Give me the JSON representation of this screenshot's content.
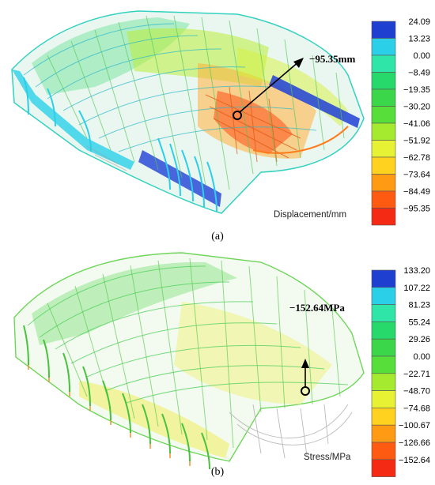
{
  "panel_a": {
    "caption": "(a)",
    "annotation": "−95.35mm",
    "legend_title": "Displacement/mm",
    "legend_values": [
      "24.09",
      "13.23",
      "0.00",
      "−8.49",
      "−19.35",
      "−30.20",
      "−41.06",
      "−51.92",
      "−62.78",
      "−73.64",
      "−84.49",
      "−95.35"
    ],
    "legend_colors": [
      "#1f3fd1",
      "#2bd0e8",
      "#2fe6a8",
      "#27d96a",
      "#3bd64a",
      "#57de3b",
      "#a6ea2f",
      "#e6f233",
      "#ffd21f",
      "#ff9a14",
      "#ff5a12",
      "#f52a14"
    ]
  },
  "panel_b": {
    "caption": "(b)",
    "annotation": "−152.64MPa",
    "legend_title": "Stress/MPa",
    "legend_values": [
      "133.20",
      "107.22",
      "81.23",
      "55.24",
      "29.26",
      "0.00",
      "−22.71",
      "−48.70",
      "−74.68",
      "−100.67",
      "−126.66",
      "−152.64"
    ],
    "legend_colors": [
      "#1f3fd1",
      "#2bd0e8",
      "#2fe6a8",
      "#27d96a",
      "#3bd64a",
      "#57de3b",
      "#a6ea2f",
      "#e6f233",
      "#ffd21f",
      "#ff9a14",
      "#ff5a12",
      "#f52a14"
    ]
  }
}
